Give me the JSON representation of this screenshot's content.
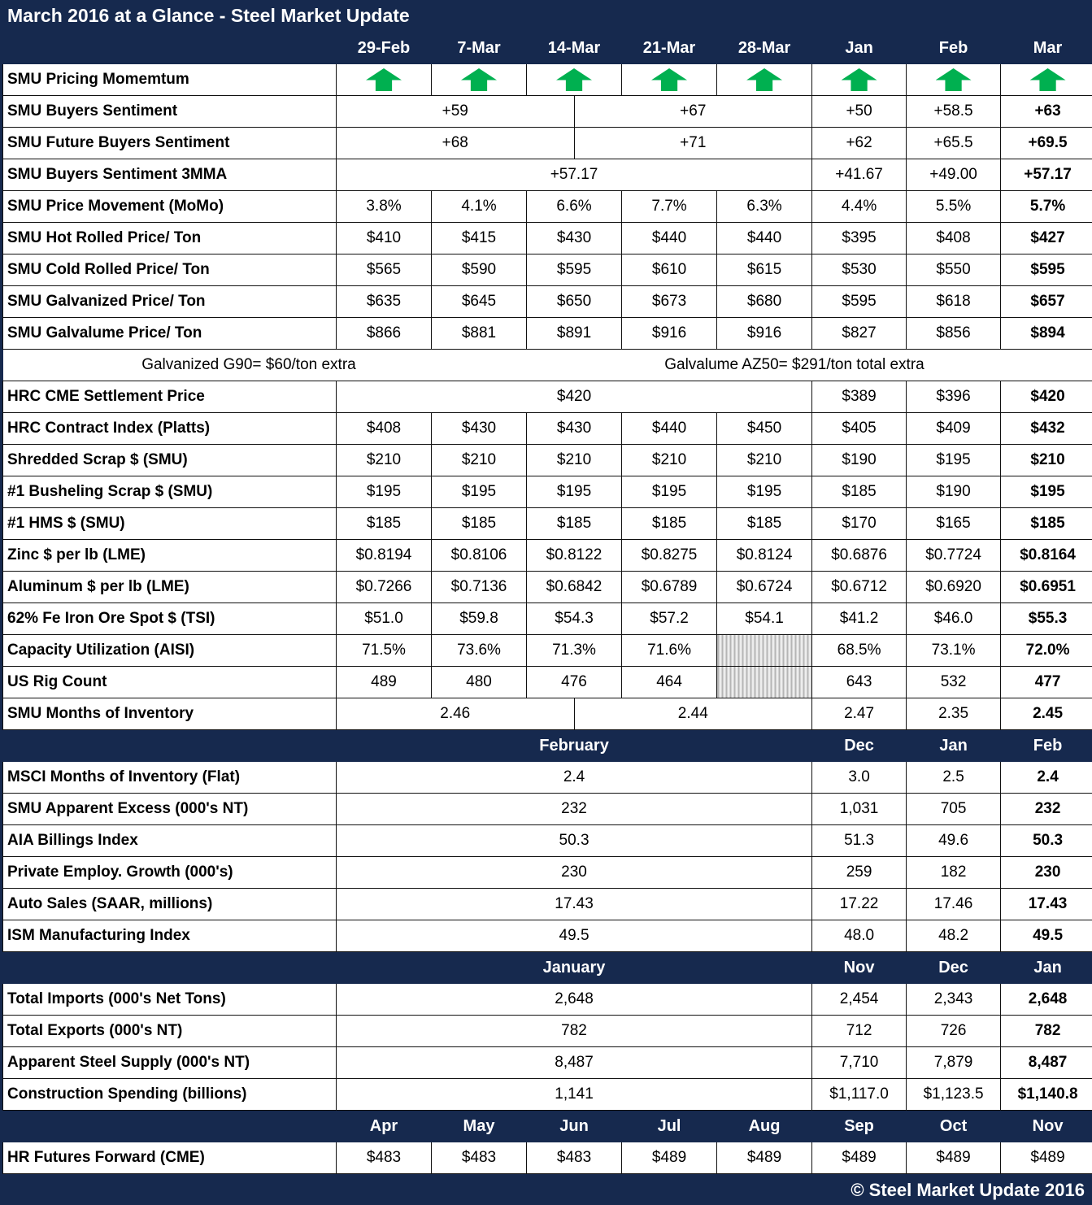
{
  "title": "March 2016 at a Glance - Steel Market Update",
  "footer": "© Steel Market Update 2016",
  "colors": {
    "navy": "#16294e",
    "arrow_green": "#00b050",
    "hatch_gray": "#b5b5b5"
  },
  "chart_data": {
    "type": "table",
    "title": "March 2016 at a Glance - Steel Market Update",
    "rows": [
      {
        "type": "cols",
        "weekly": [
          "29-Feb",
          "7-Mar",
          "14-Mar",
          "21-Mar",
          "28-Mar"
        ],
        "monthly": [
          "Jan",
          "Feb",
          "Mar"
        ]
      },
      {
        "label": "SMU Pricing Momemtum",
        "week": [
          {
            "icon": "up-arrow"
          },
          {
            "icon": "up-arrow"
          },
          {
            "icon": "up-arrow"
          },
          {
            "icon": "up-arrow"
          },
          {
            "icon": "up-arrow"
          }
        ],
        "months": [
          {
            "icon": "up-arrow"
          },
          {
            "icon": "up-arrow"
          },
          {
            "icon": "up-arrow"
          }
        ]
      },
      {
        "label": "SMU Buyers Sentiment",
        "week": [
          {
            "v": "+59",
            "s": 5
          },
          {
            "v": "+67",
            "s": 5
          }
        ],
        "months": [
          "+50",
          "+58.5",
          {
            "v": "+63",
            "b": 1
          }
        ]
      },
      {
        "label": "SMU Future Buyers Sentiment",
        "week": [
          {
            "v": "+68",
            "s": 5
          },
          {
            "v": "+71",
            "s": 5
          }
        ],
        "months": [
          "+62",
          "+65.5",
          {
            "v": "+69.5",
            "b": 1
          }
        ]
      },
      {
        "label": "SMU Buyers Sentiment 3MMA",
        "week": [
          {
            "v": "+57.17",
            "s": 10
          }
        ],
        "months": [
          "+41.67",
          "+49.00",
          {
            "v": "+57.17",
            "b": 1
          }
        ]
      },
      {
        "label": "SMU Price Movement (MoMo)",
        "week": [
          "3.8%",
          "4.1%",
          "6.6%",
          "7.7%",
          "6.3%"
        ],
        "months": [
          "4.4%",
          "5.5%",
          {
            "v": "5.7%",
            "b": 1
          }
        ]
      },
      {
        "label": "SMU Hot Rolled Price/ Ton",
        "week": [
          "$410",
          "$415",
          "$430",
          "$440",
          "$440"
        ],
        "months": [
          "$395",
          "$408",
          {
            "v": "$427",
            "b": 1
          }
        ]
      },
      {
        "label": "SMU Cold Rolled Price/ Ton",
        "week": [
          "$565",
          "$590",
          "$595",
          "$610",
          "$615"
        ],
        "months": [
          "$530",
          "$550",
          {
            "v": "$595",
            "b": 1
          }
        ]
      },
      {
        "label": "SMU Galvanized Price/ Ton",
        "week": [
          "$635",
          "$645",
          "$650",
          "$673",
          "$680"
        ],
        "months": [
          "$595",
          "$618",
          {
            "v": "$657",
            "b": 1
          }
        ]
      },
      {
        "label": "SMU Galvalume Price/ Ton",
        "week": [
          "$866",
          "$881",
          "$891",
          "$916",
          "$916"
        ],
        "months": [
          "$827",
          "$856",
          {
            "v": "$894",
            "b": 1
          }
        ]
      },
      {
        "type": "note",
        "left": "Galvanized G90= $60/ton extra",
        "right": "Galvalume AZ50= $291/ton total extra"
      },
      {
        "label": "HRC CME Settlement Price",
        "week": [
          {
            "v": "$420",
            "s": 10
          }
        ],
        "months": [
          "$389",
          "$396",
          {
            "v": "$420",
            "b": 1
          }
        ]
      },
      {
        "label": "HRC Contract Index (Platts)",
        "week": [
          "$408",
          "$430",
          "$430",
          "$440",
          "$450"
        ],
        "months": [
          "$405",
          "$409",
          {
            "v": "$432",
            "b": 1
          }
        ]
      },
      {
        "label": "Shredded Scrap $ (SMU)",
        "week": [
          "$210",
          "$210",
          "$210",
          "$210",
          "$210"
        ],
        "months": [
          "$190",
          "$195",
          {
            "v": "$210",
            "b": 1
          }
        ]
      },
      {
        "label": "#1 Busheling Scrap $ (SMU)",
        "week": [
          "$195",
          "$195",
          "$195",
          "$195",
          "$195"
        ],
        "months": [
          "$185",
          "$190",
          {
            "v": "$195",
            "b": 1
          }
        ]
      },
      {
        "label": "#1 HMS $ (SMU)",
        "week": [
          "$185",
          "$185",
          "$185",
          "$185",
          "$185"
        ],
        "months": [
          "$170",
          "$165",
          {
            "v": "$185",
            "b": 1
          }
        ]
      },
      {
        "label": "Zinc $ per lb (LME)",
        "week": [
          "$0.8194",
          "$0.8106",
          "$0.8122",
          "$0.8275",
          "$0.8124"
        ],
        "months": [
          "$0.6876",
          "$0.7724",
          {
            "v": "$0.8164",
            "b": 1
          }
        ]
      },
      {
        "label": "Aluminum $ per lb (LME)",
        "week": [
          "$0.7266",
          "$0.7136",
          "$0.6842",
          "$0.6789",
          "$0.6724"
        ],
        "months": [
          "$0.6712",
          "$0.6920",
          {
            "v": "$0.6951",
            "b": 1
          }
        ]
      },
      {
        "label": "62% Fe Iron Ore Spot $ (TSI)",
        "week": [
          "$51.0",
          "$59.8",
          "$54.3",
          "$57.2",
          "$54.1"
        ],
        "months": [
          "$41.2",
          "$46.0",
          {
            "v": "$55.3",
            "b": 1
          }
        ]
      },
      {
        "label": "Capacity Utilization (AISI)",
        "week": [
          "71.5%",
          "73.6%",
          "71.3%",
          "71.6%",
          {
            "hatch": 1
          }
        ],
        "months": [
          "68.5%",
          "73.1%",
          {
            "v": "72.0%",
            "b": 1
          }
        ]
      },
      {
        "label": "US Rig Count",
        "week": [
          "489",
          "480",
          "476",
          "464",
          {
            "hatch": 1
          }
        ],
        "months": [
          "643",
          "532",
          {
            "v": "477",
            "b": 1
          }
        ]
      },
      {
        "label": "SMU Months of Inventory",
        "week": [
          {
            "v": "2.46",
            "s": 5
          },
          {
            "v": "2.44",
            "s": 5
          }
        ],
        "months": [
          "2.47",
          "2.35",
          {
            "v": "2.45",
            "b": 1
          }
        ]
      },
      {
        "type": "section",
        "week_title": "February",
        "monthly": [
          "Dec",
          "Jan",
          "Feb"
        ]
      },
      {
        "label": "MSCI Months of Inventory (Flat)",
        "week": [
          {
            "v": "2.4",
            "s": 10
          }
        ],
        "months": [
          "3.0",
          "2.5",
          {
            "v": "2.4",
            "b": 1
          }
        ]
      },
      {
        "label": "SMU Apparent Excess (000's NT)",
        "week": [
          {
            "v": "232",
            "s": 10
          }
        ],
        "months": [
          "1,031",
          "705",
          {
            "v": "232",
            "b": 1
          }
        ]
      },
      {
        "label": "AIA Billings Index",
        "week": [
          {
            "v": "50.3",
            "s": 10
          }
        ],
        "months": [
          "51.3",
          "49.6",
          {
            "v": "50.3",
            "b": 1
          }
        ]
      },
      {
        "label": "Private Employ. Growth (000's)",
        "week": [
          {
            "v": "230",
            "s": 10
          }
        ],
        "months": [
          "259",
          "182",
          {
            "v": "230",
            "b": 1
          }
        ]
      },
      {
        "label": "Auto Sales (SAAR, millions)",
        "week": [
          {
            "v": "17.43",
            "s": 10
          }
        ],
        "months": [
          "17.22",
          "17.46",
          {
            "v": "17.43",
            "b": 1
          }
        ]
      },
      {
        "label": "ISM Manufacturing Index",
        "week": [
          {
            "v": "49.5",
            "s": 10
          }
        ],
        "months": [
          "48.0",
          "48.2",
          {
            "v": "49.5",
            "b": 1
          }
        ]
      },
      {
        "type": "section",
        "week_title": "January",
        "monthly": [
          "Nov",
          "Dec",
          "Jan"
        ]
      },
      {
        "label": "Total Imports (000's Net Tons)",
        "week": [
          {
            "v": "2,648",
            "s": 10
          }
        ],
        "months": [
          "2,454",
          "2,343",
          {
            "v": "2,648",
            "b": 1
          }
        ]
      },
      {
        "label": "Total Exports (000's NT)",
        "week": [
          {
            "v": "782",
            "s": 10
          }
        ],
        "months": [
          "712",
          "726",
          {
            "v": "782",
            "b": 1
          }
        ]
      },
      {
        "label": "Apparent Steel Supply (000's NT)",
        "week": [
          {
            "v": "8,487",
            "s": 10
          }
        ],
        "months": [
          "7,710",
          "7,879",
          {
            "v": "8,487",
            "b": 1
          }
        ]
      },
      {
        "label": "Construction Spending (billions)",
        "week": [
          {
            "v": "1,141",
            "s": 10
          }
        ],
        "months": [
          "$1,117.0",
          "$1,123.5",
          {
            "v": "$1,140.8",
            "b": 1
          }
        ]
      },
      {
        "type": "cols",
        "weekly": [
          "Apr",
          "May",
          "Jun",
          "Jul",
          "Aug"
        ],
        "monthly": [
          "Sep",
          "Oct",
          "Nov"
        ]
      },
      {
        "label": "HR Futures Forward (CME)",
        "week": [
          "$483",
          "$483",
          "$483",
          "$489",
          "$489"
        ],
        "months": [
          "$489",
          "$489",
          "$489"
        ]
      }
    ]
  }
}
